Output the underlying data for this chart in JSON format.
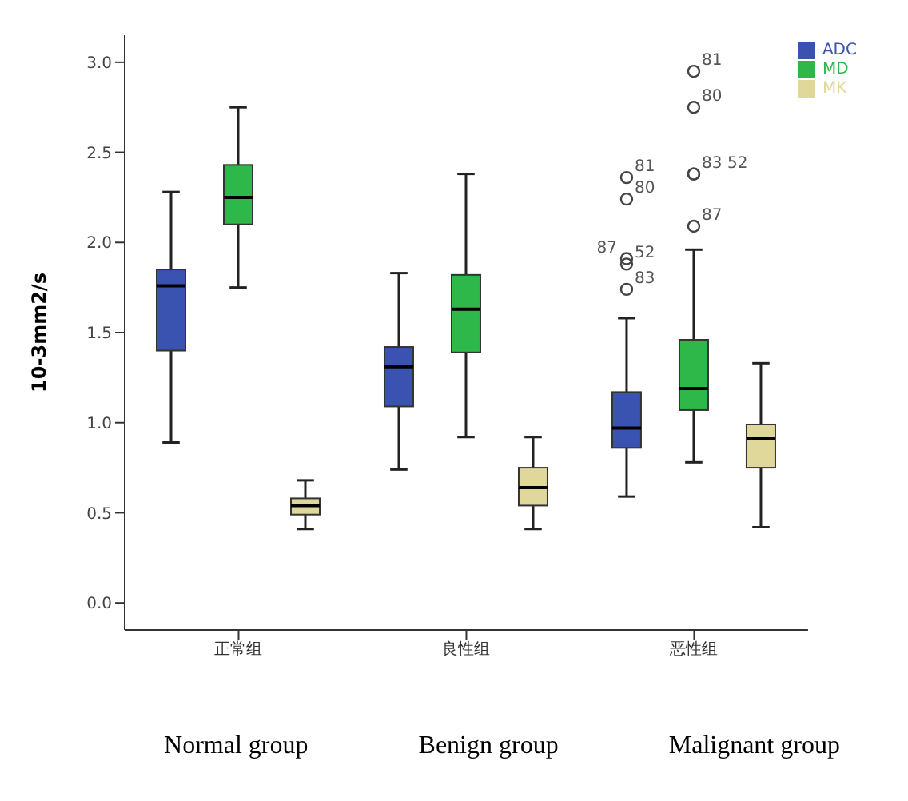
{
  "chart_data": {
    "type": "box",
    "ylabel": "10-3mm2/s",
    "categories": [
      "正常组",
      "良性组",
      "恶性组"
    ],
    "ylim": [
      -0.15,
      3.15
    ],
    "yticks": [
      {
        "value": 0,
        "label": "0.0"
      },
      {
        "value": 0.5,
        "label": "0.5"
      },
      {
        "value": 1,
        "label": "1.0"
      },
      {
        "value": 1.5,
        "label": "1.5"
      },
      {
        "value": 2,
        "label": "2.0"
      },
      {
        "value": 2.5,
        "label": "2.5"
      },
      {
        "value": 3,
        "label": "3.0"
      }
    ],
    "legend": "top right",
    "grid": false,
    "series": [
      {
        "name": "ADC",
        "color": "#3a52b0",
        "boxes": [
          {
            "low": 0.89,
            "q1": 1.4,
            "median": 1.76,
            "q3": 1.85,
            "high": 2.28
          },
          {
            "low": 0.74,
            "q1": 1.09,
            "median": 1.31,
            "q3": 1.42,
            "high": 1.83
          },
          {
            "low": 0.59,
            "q1": 0.86,
            "median": 0.97,
            "q3": 1.17,
            "high": 1.58,
            "outliers": [
              1.74,
              1.88,
              1.91,
              2.24,
              2.36
            ]
          }
        ]
      },
      {
        "name": "MD",
        "color": "#2eb84a",
        "boxes": [
          {
            "low": 1.75,
            "q1": 2.1,
            "median": 2.25,
            "q3": 2.43,
            "high": 2.75
          },
          {
            "low": 0.92,
            "q1": 1.39,
            "median": 1.63,
            "q3": 1.82,
            "high": 2.38
          },
          {
            "low": 0.78,
            "q1": 1.07,
            "median": 1.19,
            "q3": 1.46,
            "high": 1.96,
            "outliers": [
              2.09,
              2.38,
              2.38,
              2.75,
              2.95
            ]
          }
        ]
      },
      {
        "name": "MK",
        "color": "#e0d89a",
        "boxes": [
          {
            "low": 0.41,
            "q1": 0.49,
            "median": 0.54,
            "q3": 0.58,
            "high": 0.68
          },
          {
            "low": 0.41,
            "q1": 0.54,
            "median": 0.64,
            "q3": 0.75,
            "high": 0.92
          },
          {
            "low": 0.42,
            "q1": 0.75,
            "median": 0.91,
            "q3": 0.99,
            "high": 1.33
          }
        ]
      }
    ],
    "annotations": [
      "83",
      "52",
      "87",
      "80",
      "81",
      "87",
      "83",
      "52",
      "80",
      "81",
      "Normal group",
      "Benign group",
      "Malignant group"
    ]
  }
}
